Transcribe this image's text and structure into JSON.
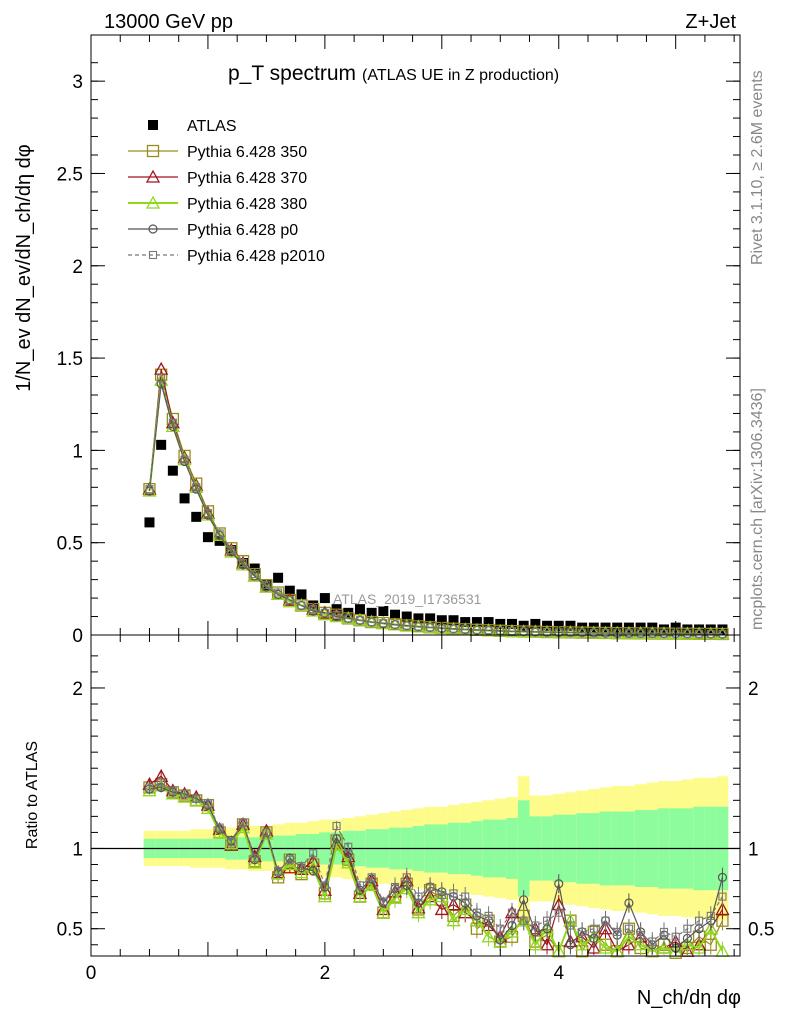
{
  "header": {
    "energy": "13000 GeV pp",
    "process": "Z+Jet"
  },
  "side": {
    "rivet": "Rivet 3.1.10, ≥ 2.6M events",
    "mcplots": "mcplots.cern.ch [arXiv:1306.3436]"
  },
  "watermark": "ATLAS_2019_I1736531",
  "colors": {
    "data": "#000000",
    "p350": "#9a8c1a",
    "p370": "#a0141e",
    "p380": "#8fd81e",
    "p0": "#555555",
    "p2010": "#777777",
    "band_green": "#8dfc9d",
    "band_yellow": "#fdfb89"
  },
  "chart_data": [
    {
      "type": "line",
      "panel": "main",
      "title": "p_T spectrum",
      "title_note": "(ATLAS UE in Z production)",
      "xlabel": "N_ch/dη dφ",
      "ylabel": "1/N_ev dN_ev/dN_ch/dη dφ",
      "xlim": [
        0,
        5.55
      ],
      "ylim": [
        0,
        3.25
      ],
      "xticks": [
        "0",
        "2",
        "4"
      ],
      "yticks": [
        "0",
        "0.5",
        "1",
        "1.5",
        "2",
        "2.5",
        "3"
      ],
      "x": [
        0.5,
        0.6,
        0.7,
        0.8,
        0.9,
        1.0,
        1.1,
        1.2,
        1.3,
        1.4,
        1.5,
        1.6,
        1.7,
        1.8,
        1.9,
        2.0,
        2.1,
        2.2,
        2.3,
        2.4,
        2.5,
        2.6,
        2.7,
        2.8,
        2.9,
        3.0,
        3.1,
        3.2,
        3.3,
        3.4,
        3.5,
        3.6,
        3.7,
        3.8,
        3.9,
        4.0,
        4.1,
        4.2,
        4.3,
        4.4,
        4.5,
        4.6,
        4.7,
        4.8,
        4.9,
        5.0,
        5.1,
        5.2,
        5.3,
        5.4
      ],
      "legend": [
        "ATLAS",
        "Pythia 6.428 350",
        "Pythia 6.428 370",
        "Pythia 6.428 380",
        "Pythia 6.428 p0",
        "Pythia 6.428 p2010"
      ],
      "series": [
        {
          "name": "ATLAS",
          "values": [
            0.61,
            1.03,
            0.89,
            0.74,
            0.64,
            0.53,
            0.51,
            0.46,
            0.39,
            0.36,
            0.27,
            0.31,
            0.24,
            0.22,
            0.16,
            0.2,
            0.14,
            0.12,
            0.14,
            0.12,
            0.13,
            0.11,
            0.1,
            0.09,
            0.09,
            0.08,
            0.08,
            0.07,
            0.07,
            0.07,
            0.06,
            0.06,
            0.05,
            0.06,
            0.05,
            0.05,
            0.05,
            0.04,
            0.04,
            0.04,
            0.04,
            0.04,
            0.04,
            0.04,
            0.03,
            0.04,
            0.03,
            0.03,
            0.03,
            0.03
          ]
        },
        {
          "name": "Pythia 6.428 350",
          "values": [
            0.79,
            1.41,
            1.17,
            0.97,
            0.82,
            0.67,
            0.55,
            0.47,
            0.4,
            0.33,
            0.27,
            0.23,
            0.19,
            0.16,
            0.14,
            0.12,
            0.11,
            0.09,
            0.08,
            0.07,
            0.065,
            0.058,
            0.052,
            0.047,
            0.042,
            0.038,
            0.034,
            0.031,
            0.028,
            0.026,
            0.023,
            0.021,
            0.019,
            0.018,
            0.016,
            0.015,
            0.014,
            0.013,
            0.012,
            0.011,
            0.01,
            0.0095,
            0.009,
            0.0085,
            0.008,
            0.0075,
            0.007,
            0.0065,
            0.006,
            0.0055
          ]
        },
        {
          "name": "Pythia 6.428 370",
          "values": [
            0.79,
            1.44,
            1.15,
            0.96,
            0.81,
            0.66,
            0.54,
            0.46,
            0.39,
            0.32,
            0.26,
            0.22,
            0.19,
            0.16,
            0.14,
            0.12,
            0.11,
            0.09,
            0.08,
            0.07,
            0.064,
            0.057,
            0.051,
            0.046,
            0.041,
            0.037,
            0.033,
            0.03,
            0.027,
            0.025,
            0.022,
            0.02,
            0.019,
            0.017,
            0.016,
            0.015,
            0.014,
            0.013,
            0.012,
            0.011,
            0.01,
            0.0095,
            0.009,
            0.0085,
            0.008,
            0.0075,
            0.007,
            0.0065,
            0.006,
            0.0055
          ]
        },
        {
          "name": "Pythia 6.428 380",
          "values": [
            0.78,
            1.38,
            1.13,
            0.95,
            0.8,
            0.65,
            0.54,
            0.45,
            0.38,
            0.32,
            0.26,
            0.22,
            0.18,
            0.16,
            0.13,
            0.11,
            0.1,
            0.09,
            0.08,
            0.07,
            0.062,
            0.055,
            0.049,
            0.044,
            0.04,
            0.036,
            0.032,
            0.029,
            0.026,
            0.024,
            0.021,
            0.019,
            0.018,
            0.017,
            0.015,
            0.014,
            0.013,
            0.012,
            0.011,
            0.01,
            0.0095,
            0.009,
            0.0085,
            0.008,
            0.0075,
            0.007,
            0.0065,
            0.006,
            0.0055,
            0.005
          ]
        },
        {
          "name": "Pythia 6.428 p0",
          "values": [
            0.78,
            1.36,
            1.13,
            0.94,
            0.79,
            0.65,
            0.54,
            0.45,
            0.38,
            0.32,
            0.26,
            0.22,
            0.19,
            0.16,
            0.13,
            0.12,
            0.1,
            0.09,
            0.08,
            0.07,
            0.063,
            0.056,
            0.05,
            0.045,
            0.041,
            0.037,
            0.033,
            0.03,
            0.027,
            0.025,
            0.022,
            0.02,
            0.019,
            0.017,
            0.016,
            0.015,
            0.014,
            0.013,
            0.012,
            0.011,
            0.01,
            0.0095,
            0.009,
            0.0085,
            0.008,
            0.0075,
            0.007,
            0.0065,
            0.006,
            0.0055
          ]
        },
        {
          "name": "Pythia 6.428 p2010",
          "values": [
            0.79,
            1.39,
            1.15,
            0.95,
            0.8,
            0.66,
            0.55,
            0.46,
            0.39,
            0.33,
            0.27,
            0.23,
            0.19,
            0.16,
            0.14,
            0.12,
            0.11,
            0.09,
            0.08,
            0.07,
            0.064,
            0.057,
            0.051,
            0.046,
            0.042,
            0.038,
            0.034,
            0.031,
            0.028,
            0.026,
            0.023,
            0.021,
            0.019,
            0.018,
            0.016,
            0.015,
            0.014,
            0.013,
            0.012,
            0.011,
            0.01,
            0.0095,
            0.009,
            0.0085,
            0.008,
            0.0075,
            0.007,
            0.0065,
            0.006,
            0.0055
          ]
        }
      ]
    },
    {
      "type": "line",
      "panel": "ratio",
      "ylabel": "Ratio to ATLAS",
      "xlabel": "N_ch/dη dφ",
      "xlim": [
        0,
        5.55
      ],
      "ylim": [
        0.33,
        2.33
      ],
      "yticks": [
        "0.5",
        "1",
        "2"
      ],
      "reference_line": 1,
      "x": [
        0.5,
        0.6,
        0.7,
        0.8,
        0.9,
        1.0,
        1.1,
        1.2,
        1.3,
        1.4,
        1.5,
        1.6,
        1.7,
        1.8,
        1.9,
        2.0,
        2.1,
        2.2,
        2.3,
        2.4,
        2.5,
        2.6,
        2.7,
        2.8,
        2.9,
        3.0,
        3.1,
        3.2,
        3.3,
        3.4,
        3.5,
        3.6,
        3.7,
        3.8,
        3.9,
        4.0,
        4.1,
        4.2,
        4.3,
        4.4,
        4.5,
        4.6,
        4.7,
        4.8,
        4.9,
        5.0,
        5.1,
        5.2,
        5.3,
        5.4
      ],
      "band_green": [
        0.06,
        0.06,
        0.06,
        0.06,
        0.06,
        0.06,
        0.06,
        0.07,
        0.07,
        0.07,
        0.08,
        0.08,
        0.08,
        0.09,
        0.09,
        0.1,
        0.1,
        0.11,
        0.11,
        0.12,
        0.12,
        0.13,
        0.13,
        0.14,
        0.15,
        0.15,
        0.16,
        0.16,
        0.17,
        0.18,
        0.18,
        0.19,
        0.3,
        0.2,
        0.2,
        0.21,
        0.21,
        0.22,
        0.22,
        0.23,
        0.23,
        0.23,
        0.24,
        0.24,
        0.25,
        0.25,
        0.25,
        0.26,
        0.26,
        0.26
      ],
      "band_yellow": [
        0.11,
        0.11,
        0.11,
        0.11,
        0.12,
        0.12,
        0.12,
        0.13,
        0.13,
        0.14,
        0.14,
        0.15,
        0.16,
        0.16,
        0.17,
        0.18,
        0.18,
        0.19,
        0.2,
        0.21,
        0.22,
        0.23,
        0.24,
        0.25,
        0.26,
        0.26,
        0.27,
        0.28,
        0.29,
        0.3,
        0.31,
        0.32,
        0.45,
        0.33,
        0.33,
        0.34,
        0.35,
        0.36,
        0.37,
        0.38,
        0.39,
        0.39,
        0.4,
        0.41,
        0.42,
        0.42,
        0.43,
        0.44,
        0.44,
        0.45
      ],
      "series": [
        {
          "name": "Pythia 6.428 350",
          "values": [
            1.38,
            1.4,
            1.35,
            1.33,
            1.3,
            1.27,
            1.1,
            1.04,
            1.15,
            0.92,
            1.1,
            0.82,
            0.93,
            0.84,
            0.9,
            0.72,
            1.05,
            0.93,
            0.7,
            0.78,
            0.6,
            0.7,
            0.78,
            0.62,
            0.74,
            0.68,
            0.58,
            0.65,
            0.5,
            0.55,
            0.42,
            0.45,
            0.58,
            0.42,
            0.46,
            0.36,
            0.55,
            0.36,
            0.48,
            0.4,
            0.36,
            0.5,
            0.38,
            0.36,
            0.4,
            0.35,
            0.38,
            0.45,
            0.4,
            0.55
          ]
        },
        {
          "name": "Pythia 6.428 370",
          "values": [
            1.4,
            1.45,
            1.36,
            1.34,
            1.32,
            1.27,
            1.12,
            1.02,
            1.15,
            0.95,
            1.11,
            0.85,
            0.88,
            0.87,
            0.92,
            0.74,
            1.03,
            0.95,
            0.72,
            0.8,
            0.62,
            0.73,
            0.8,
            0.63,
            0.7,
            0.62,
            0.65,
            0.6,
            0.55,
            0.52,
            0.45,
            0.6,
            0.55,
            0.5,
            0.4,
            0.65,
            0.42,
            0.45,
            0.38,
            0.5,
            0.36,
            0.4,
            0.45,
            0.36,
            0.38,
            0.42,
            0.36,
            0.4,
            0.5,
            0.62
          ]
        },
        {
          "name": "Pythia 6.428 380",
          "values": [
            1.36,
            1.39,
            1.34,
            1.32,
            1.3,
            1.25,
            1.1,
            1.03,
            1.13,
            0.91,
            1.09,
            0.84,
            0.9,
            0.85,
            0.88,
            0.7,
            1.02,
            0.91,
            0.7,
            0.77,
            0.6,
            0.69,
            0.75,
            0.6,
            0.68,
            0.7,
            0.55,
            0.62,
            0.55,
            0.45,
            0.42,
            0.48,
            0.55,
            0.4,
            0.5,
            0.36,
            0.55,
            0.4,
            0.45,
            0.38,
            0.36,
            0.45,
            0.4,
            0.36,
            0.38,
            0.36,
            0.4,
            0.38,
            0.5,
            0.36
          ]
        },
        {
          "name": "Pythia 6.428 p0",
          "values": [
            1.37,
            1.38,
            1.35,
            1.34,
            1.31,
            1.27,
            1.12,
            1.05,
            1.16,
            0.93,
            1.1,
            0.85,
            0.94,
            0.88,
            0.86,
            0.76,
            1.06,
            0.97,
            0.74,
            0.81,
            0.66,
            0.75,
            0.77,
            0.66,
            0.76,
            0.73,
            0.7,
            0.66,
            0.58,
            0.55,
            0.43,
            0.52,
            0.68,
            0.48,
            0.5,
            0.78,
            0.4,
            0.48,
            0.44,
            0.55,
            0.46,
            0.66,
            0.48,
            0.4,
            0.46,
            0.38,
            0.44,
            0.5,
            0.55,
            0.82
          ]
        },
        {
          "name": "Pythia 6.428 p2010",
          "values": [
            1.38,
            1.41,
            1.36,
            1.34,
            1.31,
            1.28,
            1.13,
            1.04,
            1.16,
            0.94,
            1.1,
            0.86,
            0.93,
            0.89,
            0.97,
            0.77,
            1.14,
            1.01,
            0.77,
            0.82,
            0.67,
            0.76,
            0.82,
            0.7,
            0.76,
            0.71,
            0.72,
            0.7,
            0.6,
            0.58,
            0.5,
            0.6,
            0.55,
            0.52,
            0.55,
            0.6,
            0.52,
            0.48,
            0.5,
            0.55,
            0.48,
            0.5,
            0.46,
            0.42,
            0.48,
            0.45,
            0.5,
            0.55,
            0.58,
            0.7
          ]
        }
      ]
    }
  ]
}
